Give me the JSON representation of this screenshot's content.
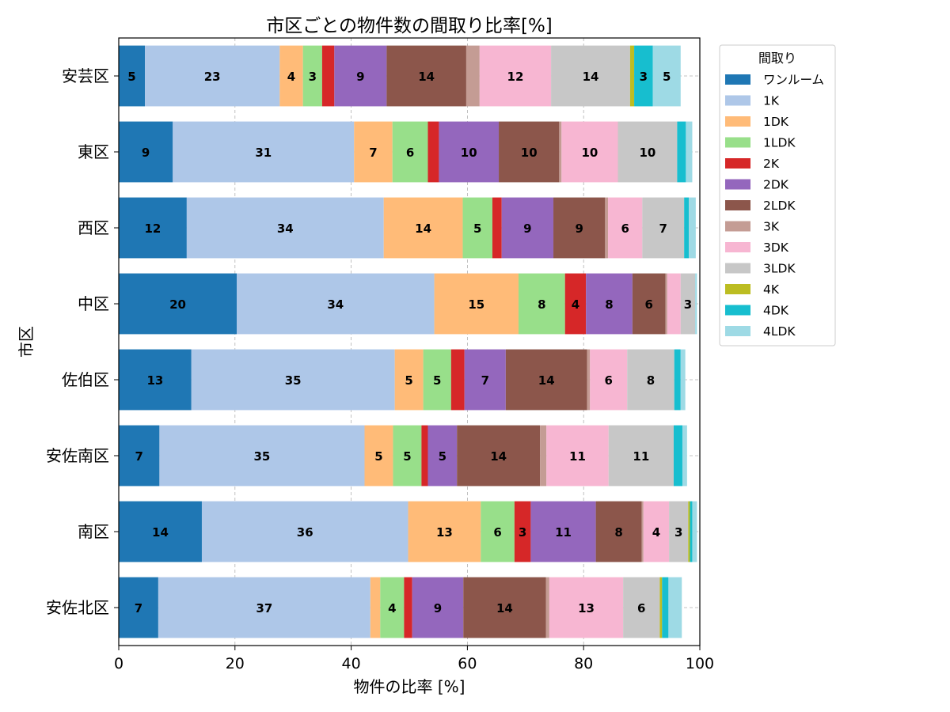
{
  "chart_data": {
    "type": "bar",
    "orientation": "horizontal",
    "stacked": true,
    "title": "市区ごとの物件数の間取り比率[%]",
    "xlabel": "物件の比率 [%]",
    "ylabel": "市区",
    "xlim": [
      0,
      100
    ],
    "xticks": [
      "0",
      "20",
      "40",
      "60",
      "80",
      "100"
    ],
    "grid": true,
    "legend_title": "間取り",
    "legend_position": "outside-right-top",
    "categories": [
      "安芸区",
      "東区",
      "西区",
      "中区",
      "佐伯区",
      "安佐南区",
      "南区",
      "安佐北区"
    ],
    "series": [
      {
        "name": "ワンルーム",
        "color": "#1f77b4",
        "values": [
          4.5,
          9.3,
          11.7,
          20.3,
          12.5,
          7.0,
          14.3,
          6.8
        ]
      },
      {
        "name": "1K",
        "color": "#aec7e8",
        "values": [
          23.2,
          31.2,
          33.9,
          34.0,
          35.0,
          35.3,
          35.5,
          36.5
        ]
      },
      {
        "name": "1DK",
        "color": "#ffbb78",
        "values": [
          4.0,
          6.6,
          13.6,
          14.5,
          4.9,
          4.9,
          12.5,
          1.7
        ]
      },
      {
        "name": "1LDK",
        "color": "#98df8a",
        "values": [
          3.3,
          6.1,
          5.1,
          8.0,
          4.8,
          4.9,
          5.8,
          4.1
        ]
      },
      {
        "name": "2K",
        "color": "#d62728",
        "values": [
          2.1,
          1.9,
          1.6,
          3.6,
          2.3,
          1.1,
          2.8,
          1.4
        ]
      },
      {
        "name": "2DK",
        "color": "#9467bd",
        "values": [
          9.0,
          10.3,
          8.9,
          8.0,
          7.1,
          5.0,
          11.2,
          8.8
        ]
      },
      {
        "name": "2LDK",
        "color": "#8c564b",
        "values": [
          13.7,
          10.4,
          8.9,
          5.7,
          14.0,
          14.3,
          7.9,
          14.2
        ]
      },
      {
        "name": "3K",
        "color": "#c49c94",
        "values": [
          2.3,
          0.4,
          0.5,
          0.3,
          0.5,
          1.1,
          0.3,
          0.6
        ]
      },
      {
        "name": "3DK",
        "color": "#f7b6d2",
        "values": [
          12.3,
          9.7,
          5.9,
          2.3,
          6.4,
          10.7,
          4.4,
          12.7
        ]
      },
      {
        "name": "3LDK",
        "color": "#c7c7c7",
        "values": [
          13.6,
          10.2,
          7.2,
          2.5,
          8.1,
          11.2,
          3.3,
          6.3
        ]
      },
      {
        "name": "4K",
        "color": "#bcbd22",
        "values": [
          0.7,
          0.0,
          0.0,
          0.0,
          0.0,
          0.0,
          0.3,
          0.4
        ]
      },
      {
        "name": "4DK",
        "color": "#17becf",
        "values": [
          3.2,
          1.5,
          0.8,
          0.0,
          1.1,
          1.5,
          0.4,
          1.1
        ]
      },
      {
        "name": "4LDK",
        "color": "#9edae5",
        "values": [
          4.8,
          1.1,
          1.2,
          0.3,
          0.8,
          0.8,
          0.8,
          2.3
        ]
      }
    ]
  }
}
